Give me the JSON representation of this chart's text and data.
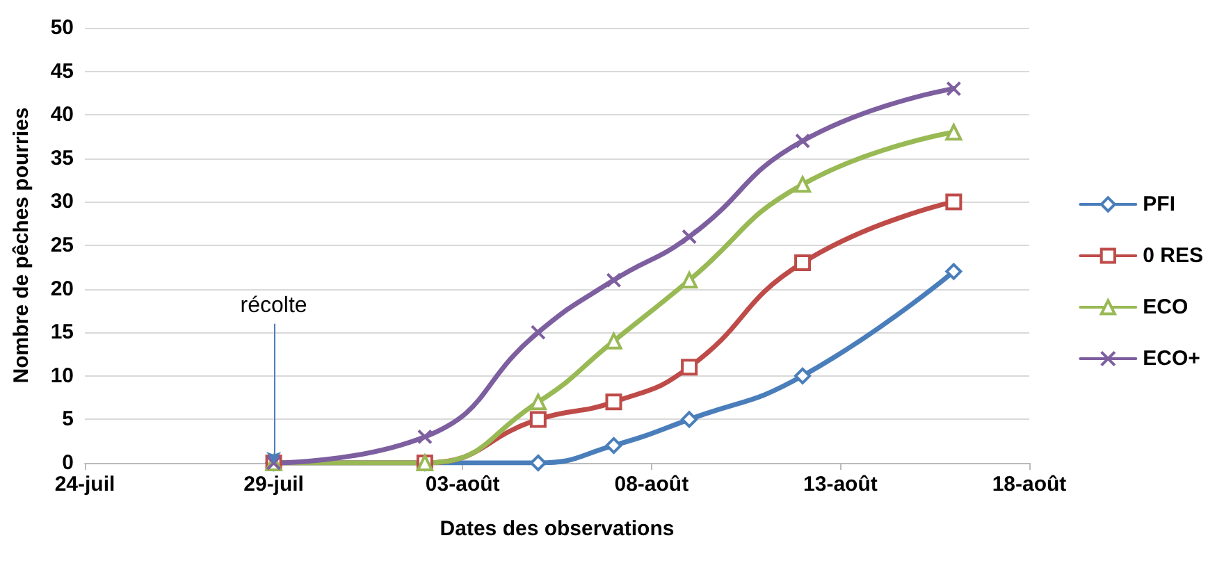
{
  "chart_data": {
    "type": "line",
    "xlabel": "Dates des observations",
    "ylabel": "Nombre de pêches pourries",
    "x": [
      "--07-29",
      "--08-02",
      "--08-05",
      "--08-07",
      "--08-09",
      "--08-12",
      "--08-16"
    ],
    "series": [
      {
        "name": "PFI",
        "color": "#4a7ebb",
        "marker": "diamond",
        "values": [
          0,
          0,
          0,
          2,
          5,
          10,
          22
        ]
      },
      {
        "name": "0 RES",
        "color": "#be4b48",
        "marker": "square",
        "values": [
          0,
          0,
          5,
          7,
          11,
          23,
          30
        ]
      },
      {
        "name": "ECO",
        "color": "#98b954",
        "marker": "triangle",
        "values": [
          0,
          0,
          7,
          14,
          21,
          32,
          38
        ]
      },
      {
        "name": "ECO+",
        "color": "#7d5fa0",
        "marker": "cross",
        "values": [
          0,
          3,
          15,
          21,
          26,
          37,
          43
        ]
      }
    ],
    "xlim": [
      "--07-24",
      "--08-18"
    ],
    "xticks": [
      {
        "value": "--07-24",
        "label": "24-juil"
      },
      {
        "value": "--07-29",
        "label": "29-juil"
      },
      {
        "value": "--08-03",
        "label": "03-août"
      },
      {
        "value": "--08-08",
        "label": "08-août"
      },
      {
        "value": "--08-13",
        "label": "13-août"
      },
      {
        "value": "--08-18",
        "label": "18-août"
      }
    ],
    "ylim": [
      0,
      50
    ],
    "yticks": [
      0,
      5,
      10,
      15,
      20,
      25,
      30,
      35,
      40,
      45,
      50
    ],
    "grid": "y",
    "legend": "right",
    "annotations": [
      {
        "text": "récolte",
        "x": "--07-29",
        "y": 0
      }
    ]
  }
}
